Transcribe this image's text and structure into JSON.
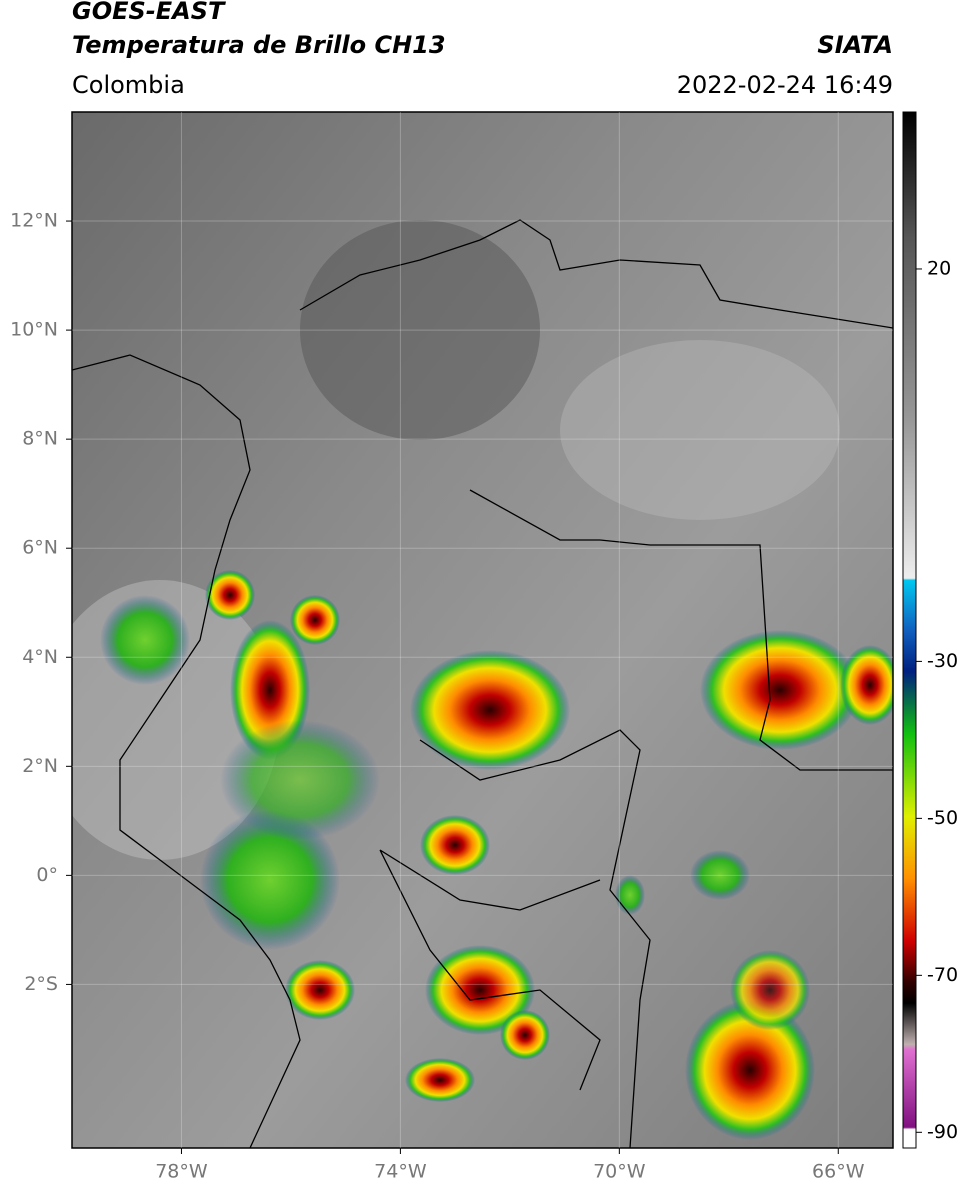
{
  "header": {
    "title_line1": "GOES-EAST",
    "title_line2": "Temperatura de Brillo CH13",
    "region": "Colombia",
    "source": "SIATA",
    "timestamp": "2022-02-24 16:49"
  },
  "map": {
    "xlim": [
      -80,
      -65
    ],
    "ylim": [
      -5,
      14
    ],
    "xticks": [
      {
        "value": -78,
        "label": "78°W"
      },
      {
        "value": -74,
        "label": "74°W"
      },
      {
        "value": -70,
        "label": "70°W"
      },
      {
        "value": -66,
        "label": "66°W"
      }
    ],
    "yticks": [
      {
        "value": -2,
        "label": "2°S"
      },
      {
        "value": 0,
        "label": "0°"
      },
      {
        "value": 2,
        "label": "2°N"
      },
      {
        "value": 4,
        "label": "4°N"
      },
      {
        "value": 6,
        "label": "6°N"
      },
      {
        "value": 8,
        "label": "8°N"
      },
      {
        "value": 10,
        "label": "10°N"
      },
      {
        "value": 12,
        "label": "12°N"
      }
    ]
  },
  "colorbar": {
    "lim": [
      -92,
      40
    ],
    "ticks": [
      20,
      -30,
      -50,
      -70,
      -90
    ]
  }
}
